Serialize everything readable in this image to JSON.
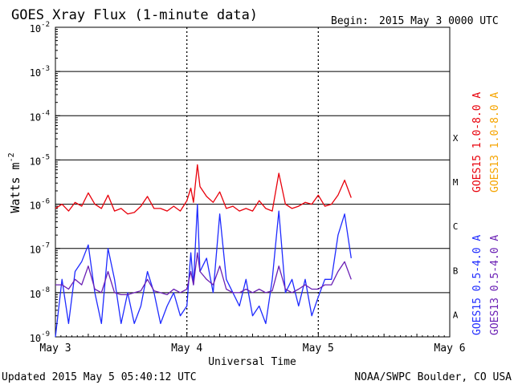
{
  "header": {
    "title": "GOES Xray Flux (1-minute data)",
    "begin_label": "Begin:",
    "begin_value": "2015 May 3 0000 UTC"
  },
  "footer": {
    "updated": "Updated 2015 May  5 05:40:12 UTC",
    "credit": "NOAA/SWPC Boulder, CO USA"
  },
  "chart_data": {
    "type": "line",
    "title": "GOES Xray Flux (1-minute data)",
    "xlabel": "Universal Time",
    "ylabel_base": "Watts m",
    "ylabel_exp": "-2",
    "yscale": "log",
    "ylim": [
      1e-09,
      0.01
    ],
    "x_unit": "days since 2015 May 3 0000 UTC",
    "xlim": [
      0,
      3
    ],
    "x_ticks": [
      {
        "value": 0,
        "label": "May 3"
      },
      {
        "value": 1,
        "label": "May 4"
      },
      {
        "value": 2,
        "label": "May 5"
      },
      {
        "value": 3,
        "label": "May 6"
      }
    ],
    "y_ticks": [
      {
        "exp": -2,
        "label": "10",
        "sup": "-2"
      },
      {
        "exp": -3,
        "label": "10",
        "sup": "-3"
      },
      {
        "exp": -4,
        "label": "10",
        "sup": "-4"
      },
      {
        "exp": -5,
        "label": "10",
        "sup": "-5"
      },
      {
        "exp": -6,
        "label": "10",
        "sup": "-6"
      },
      {
        "exp": -7,
        "label": "10",
        "sup": "-7"
      },
      {
        "exp": -8,
        "label": "10",
        "sup": "-8"
      },
      {
        "exp": -9,
        "label": "10",
        "sup": "-9"
      }
    ],
    "flare_classes": [
      {
        "label": "X",
        "exp": -4
      },
      {
        "label": "M",
        "exp": -5
      },
      {
        "label": "C",
        "exp": -6
      },
      {
        "label": "B",
        "exp": -7
      },
      {
        "label": "A",
        "exp": -8
      }
    ],
    "grid": "horizontal lines at each decade, dotted vertical lines at day boundaries",
    "legend": [
      {
        "label": "GOES15 1.0-8.0 A",
        "color": "#e8000b"
      },
      {
        "label": "GOES13 1.0-8.0 A",
        "color": "#f5a400"
      },
      {
        "label": "GOES15 0.5-4.0 A",
        "color": "#1f2bff"
      },
      {
        "label": "GOES13 0.5-4.0 A",
        "color": "#6a1fb4"
      }
    ],
    "series": [
      {
        "name": "GOES15 1.0-8.0 A",
        "color": "#e8000b",
        "x": [
          0.0,
          0.05,
          0.1,
          0.15,
          0.2,
          0.25,
          0.3,
          0.35,
          0.4,
          0.45,
          0.5,
          0.55,
          0.6,
          0.65,
          0.7,
          0.75,
          0.8,
          0.85,
          0.9,
          0.95,
          1.0,
          1.03,
          1.05,
          1.08,
          1.1,
          1.15,
          1.2,
          1.25,
          1.3,
          1.35,
          1.4,
          1.45,
          1.5,
          1.55,
          1.6,
          1.65,
          1.7,
          1.75,
          1.8,
          1.85,
          1.9,
          1.95,
          2.0,
          2.05,
          2.1,
          2.15,
          2.2,
          2.25
        ],
        "y": [
          8e-07,
          1e-06,
          7e-07,
          1.1e-06,
          9e-07,
          1.8e-06,
          1e-06,
          8e-07,
          1.6e-06,
          7e-07,
          8e-07,
          6e-07,
          6.5e-07,
          9e-07,
          1.5e-06,
          8e-07,
          8e-07,
          7e-07,
          9e-07,
          7e-07,
          1.2e-06,
          2.3e-06,
          1.1e-06,
          7.8e-06,
          2.5e-06,
          1.5e-06,
          1.1e-06,
          1.9e-06,
          8e-07,
          9e-07,
          7e-07,
          8e-07,
          7e-07,
          1.2e-06,
          8e-07,
          7e-07,
          5e-06,
          1e-06,
          8e-07,
          9e-07,
          1.1e-06,
          1e-06,
          1.6e-06,
          9e-07,
          1e-06,
          1.6e-06,
          3.5e-06,
          1.4e-06
        ]
      },
      {
        "name": "GOES15 0.5-4.0 A",
        "color": "#1f2bff",
        "x": [
          0.0,
          0.05,
          0.1,
          0.15,
          0.2,
          0.25,
          0.3,
          0.35,
          0.4,
          0.45,
          0.5,
          0.55,
          0.6,
          0.65,
          0.7,
          0.75,
          0.8,
          0.85,
          0.9,
          0.95,
          1.0,
          1.03,
          1.05,
          1.08,
          1.1,
          1.15,
          1.2,
          1.25,
          1.3,
          1.35,
          1.4,
          1.45,
          1.5,
          1.55,
          1.6,
          1.65,
          1.7,
          1.75,
          1.8,
          1.85,
          1.9,
          1.95,
          2.0,
          2.05,
          2.1,
          2.15,
          2.2,
          2.25
        ],
        "y": [
          1e-09,
          2e-08,
          2e-09,
          3e-08,
          5e-08,
          1.2e-07,
          1e-08,
          2e-09,
          1e-07,
          2e-08,
          2e-09,
          1e-08,
          2e-09,
          5e-09,
          3e-08,
          1e-08,
          2e-09,
          5e-09,
          1e-08,
          3e-09,
          5e-09,
          8e-08,
          1.5e-08,
          1e-06,
          3e-08,
          6e-08,
          1e-08,
          6e-07,
          2e-08,
          1e-08,
          5e-09,
          2e-08,
          3e-09,
          5e-09,
          2e-09,
          2e-08,
          7e-07,
          1e-08,
          2e-08,
          5e-09,
          2e-08,
          3e-09,
          8e-09,
          2e-08,
          2e-08,
          2e-07,
          6e-07,
          6e-08
        ]
      },
      {
        "name": "GOES13 0.5-4.0 A",
        "color": "#6a1fb4",
        "x": [
          0.0,
          0.05,
          0.1,
          0.15,
          0.2,
          0.25,
          0.3,
          0.35,
          0.4,
          0.45,
          0.5,
          0.55,
          0.6,
          0.65,
          0.7,
          0.75,
          0.8,
          0.85,
          0.9,
          0.95,
          1.0,
          1.03,
          1.05,
          1.08,
          1.1,
          1.15,
          1.2,
          1.25,
          1.3,
          1.35,
          1.4,
          1.45,
          1.5,
          1.55,
          1.6,
          1.65,
          1.7,
          1.75,
          1.8,
          1.85,
          1.9,
          1.95,
          2.0,
          2.05,
          2.1,
          2.15,
          2.2,
          2.25
        ],
        "y": [
          1.5e-08,
          1.5e-08,
          1.2e-08,
          2e-08,
          1.5e-08,
          4e-08,
          1.2e-08,
          1e-08,
          3e-08,
          1e-08,
          9e-09,
          9e-09,
          1e-08,
          1.1e-08,
          2e-08,
          1.1e-08,
          1e-08,
          9e-09,
          1.2e-08,
          1e-08,
          1.2e-08,
          3e-08,
          1.5e-08,
          8e-08,
          3e-08,
          2e-08,
          1.5e-08,
          4e-08,
          1.2e-08,
          1e-08,
          1e-08,
          1.2e-08,
          1e-08,
          1.2e-08,
          1e-08,
          1.1e-08,
          4e-08,
          1.2e-08,
          1e-08,
          1.2e-08,
          1.5e-08,
          1.2e-08,
          1.2e-08,
          1.5e-08,
          1.5e-08,
          3e-08,
          5e-08,
          2e-08
        ]
      }
    ]
  }
}
